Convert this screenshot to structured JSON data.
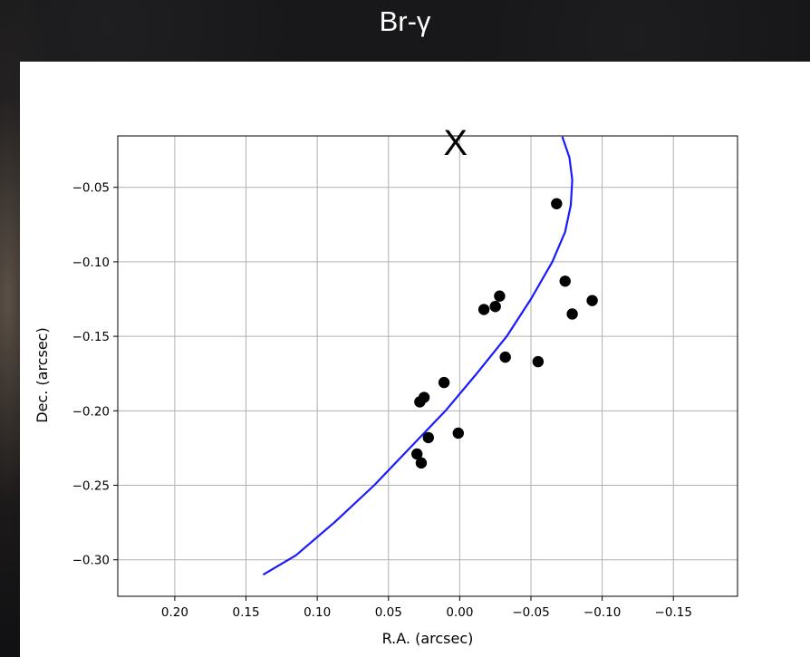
{
  "slide": {
    "title": "Br-γ"
  },
  "colors": {
    "curve": "#1a1aff",
    "points": "#000000",
    "grid": "#b0b0b0"
  },
  "chart_data": {
    "type": "scatter",
    "xlabel": "R.A. (arcsec)",
    "ylabel": "Dec. (arcsec)",
    "xlim": [
      0.24,
      -0.195
    ],
    "ylim": [
      -0.3245,
      -0.0155
    ],
    "x_inverted": true,
    "grid": true,
    "xticks": [
      0.2,
      0.15,
      0.1,
      0.05,
      0.0,
      -0.05,
      -0.1,
      -0.15
    ],
    "xtick_labels": [
      "0.20",
      "0.15",
      "0.10",
      "0.05",
      "0.00",
      "−0.05",
      "−0.10",
      "−0.15"
    ],
    "yticks": [
      -0.05,
      -0.1,
      -0.15,
      -0.2,
      -0.25,
      -0.3
    ],
    "ytick_labels": [
      "−0.05",
      "−0.10",
      "−0.15",
      "−0.20",
      "−0.25",
      "−0.30"
    ],
    "annotation": {
      "text": "X",
      "x": 0.003,
      "y": -0.0155
    },
    "series": [
      {
        "kind": "points",
        "x": [
          -0.068,
          -0.074,
          -0.093,
          -0.079,
          -0.028,
          -0.025,
          -0.017,
          -0.032,
          -0.055,
          0.011,
          0.025,
          0.028,
          0.001,
          0.022,
          0.03,
          0.027
        ],
        "y": [
          -0.061,
          -0.113,
          -0.126,
          -0.135,
          -0.123,
          -0.13,
          -0.132,
          -0.164,
          -0.167,
          -0.181,
          -0.191,
          -0.194,
          -0.215,
          -0.218,
          -0.229,
          -0.235
        ]
      },
      {
        "kind": "curve",
        "x": [
          -0.072,
          -0.077,
          -0.079,
          -0.078,
          -0.074,
          -0.065,
          -0.05,
          -0.033,
          -0.012,
          0.01,
          0.035,
          0.06,
          0.088,
          0.115,
          0.138
        ],
        "y": [
          -0.016,
          -0.03,
          -0.045,
          -0.062,
          -0.08,
          -0.1,
          -0.125,
          -0.15,
          -0.175,
          -0.2,
          -0.225,
          -0.25,
          -0.275,
          -0.297,
          -0.31
        ]
      }
    ]
  }
}
